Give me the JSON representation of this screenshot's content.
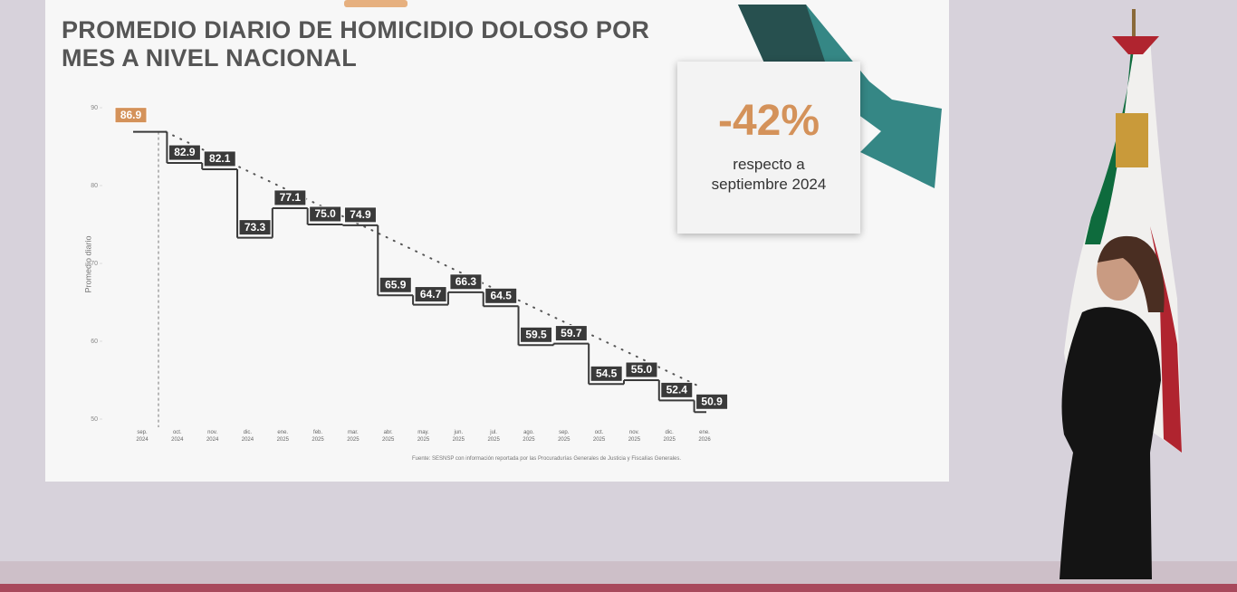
{
  "chart_data": {
    "type": "step",
    "title": "PROMEDIO DIARIO DE HOMICIDIO DOLOSO POR MES A NIVEL NACIONAL",
    "y_label": "Promedio diario",
    "categories": [
      "sep. 2024",
      "oct. 2024",
      "nov. 2024",
      "dic. 2024",
      "ene. 2025",
      "feb. 2025",
      "mar. 2025",
      "abr. 2025",
      "may. 2025",
      "jun. 2025",
      "jul. 2025",
      "ago. 2025",
      "sep. 2025",
      "oct. 2025",
      "nov. 2025",
      "dic. 2025",
      "ene. 2026"
    ],
    "values": [
      86.9,
      82.9,
      82.1,
      73.3,
      77.1,
      75.0,
      74.9,
      65.9,
      64.7,
      66.3,
      64.5,
      59.5,
      59.7,
      54.5,
      55.0,
      52.4,
      50.9
    ],
    "value_labels": [
      "86.9",
      "82.9",
      "82.1",
      "73.3",
      "77.1",
      "75.0",
      "74.9",
      "65.9",
      "64.7",
      "66.3",
      "64.5",
      "59.5",
      "59.7",
      "54.5",
      "55.0",
      "52.4",
      "50.9"
    ],
    "color": "#3a3a3a",
    "highlight_color": "#d4925a",
    "ylim": [
      50,
      90
    ],
    "yticks": [
      50,
      60,
      70,
      80,
      90
    ],
    "annotation": {
      "text": "-42%",
      "note": "respecto a septiembre 2024"
    },
    "source": "Fuente: SESNSP con información reportada por las Procuradurías Generales de Justicia y Fiscalías Generales."
  }
}
